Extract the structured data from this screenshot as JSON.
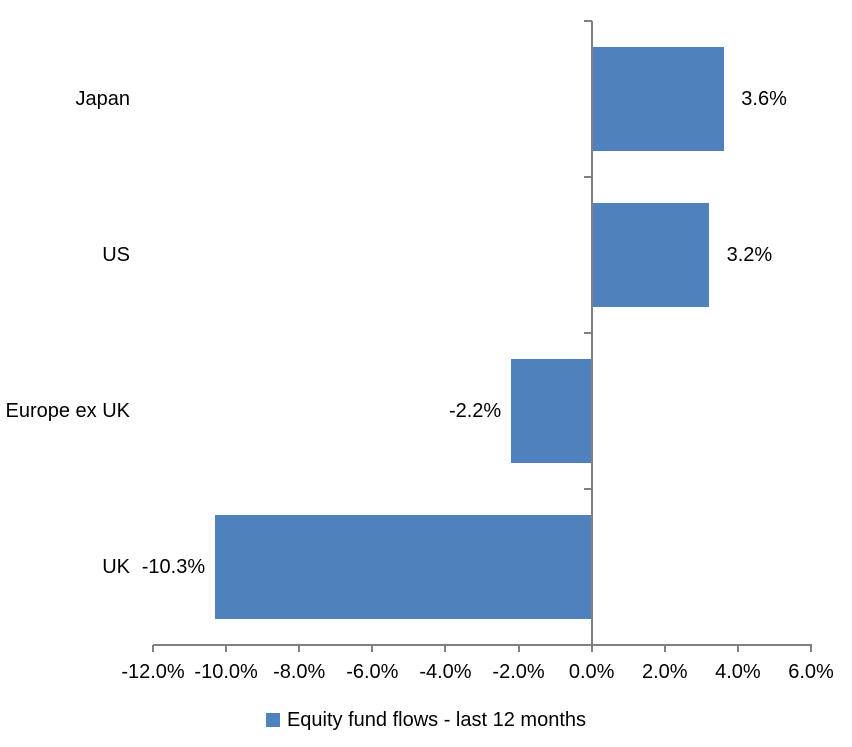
{
  "chart_data": {
    "type": "bar",
    "orientation": "horizontal",
    "categories": [
      "Japan",
      "US",
      "Europe ex UK",
      "UK"
    ],
    "series": [
      {
        "name": "Equity fund flows - last 12 months",
        "values": [
          3.6,
          3.2,
          -2.2,
          -10.3
        ],
        "data_labels": [
          "3.6%",
          "3.2%",
          "-2.2%",
          "-10.3%"
        ],
        "color": "#4F81BD"
      }
    ],
    "xlim": [
      -12,
      6
    ],
    "x_ticks": [
      {
        "value": -12,
        "label": "-12.0%"
      },
      {
        "value": -10,
        "label": "-10.0%"
      },
      {
        "value": -8,
        "label": "-8.0%"
      },
      {
        "value": -6,
        "label": "-6.0%"
      },
      {
        "value": -4,
        "label": "-4.0%"
      },
      {
        "value": -2,
        "label": "-2.0%"
      },
      {
        "value": 0,
        "label": "0.0%"
      },
      {
        "value": 2,
        "label": "2.0%"
      },
      {
        "value": 4,
        "label": "4.0%"
      },
      {
        "value": 6,
        "label": "6.0%"
      }
    ],
    "grid": false,
    "legend": {
      "position": "bottom",
      "entries": [
        {
          "label": "Equity fund flows - last 12 months",
          "marker_color": "#4F81BD"
        }
      ]
    },
    "colors": {
      "bar": "#4F81BD",
      "axis": "#808080",
      "text": "#000000",
      "background": "#FFFFFF"
    }
  }
}
